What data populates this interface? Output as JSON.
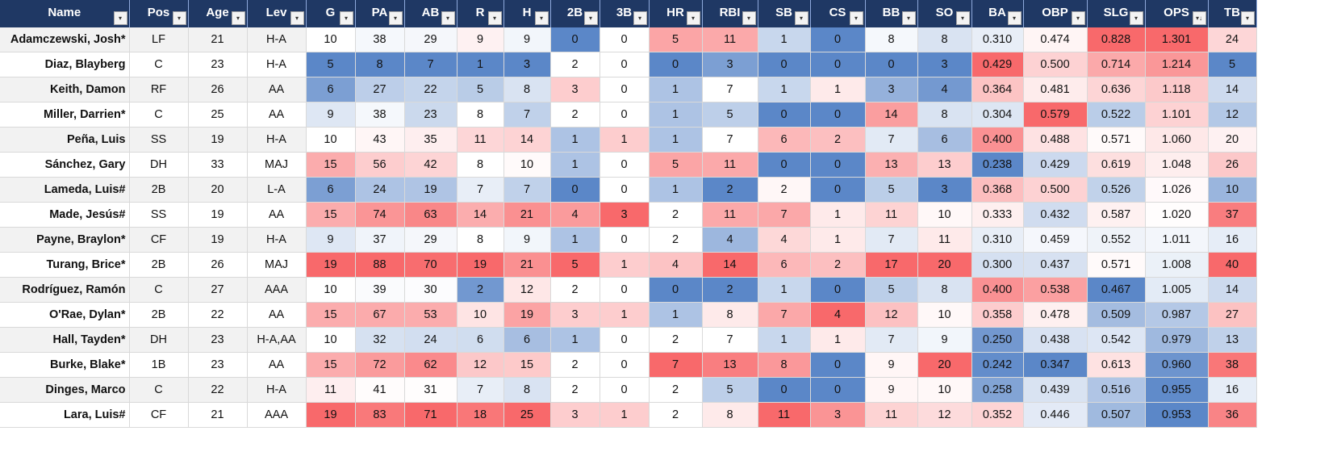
{
  "columns": [
    "Name",
    "Pos",
    "Age",
    "Lev",
    "G",
    "PA",
    "AB",
    "R",
    "H",
    "2B",
    "3B",
    "HR",
    "RBI",
    "SB",
    "CS",
    "BB",
    "SO",
    "BA",
    "OBP",
    "SLG",
    "OPS",
    "TB"
  ],
  "filter_icon": "filter-dropdown-icon",
  "sort_icon": "sort-descending-icon",
  "colors": {
    "header_bg": "#1f3864",
    "low": "#5b87c8",
    "mid": "#ffffff",
    "high": "#f8696b"
  },
  "rows": [
    {
      "name": "Adamczewski, Josh*",
      "pos": "LF",
      "age": "21",
      "lev": "H-A",
      "g": "10",
      "pa": "38",
      "ab": "29",
      "r": "9",
      "h": "9",
      "2b": "0",
      "3b": "0",
      "hr": "5",
      "rbi": "11",
      "sb": "1",
      "cs": "0",
      "bb": "8",
      "so": "8",
      "ba": "0.310",
      "obp": "0.474",
      "slg": "0.828",
      "ops": "1.301",
      "tb": "24"
    },
    {
      "name": "Diaz, Blayberg",
      "pos": "C",
      "age": "23",
      "lev": "H-A",
      "g": "5",
      "pa": "8",
      "ab": "7",
      "r": "1",
      "h": "3",
      "2b": "2",
      "3b": "0",
      "hr": "0",
      "rbi": "3",
      "sb": "0",
      "cs": "0",
      "bb": "0",
      "so": "3",
      "ba": "0.429",
      "obp": "0.500",
      "slg": "0.714",
      "ops": "1.214",
      "tb": "5"
    },
    {
      "name": "Keith, Damon",
      "pos": "RF",
      "age": "26",
      "lev": "AA",
      "g": "6",
      "pa": "27",
      "ab": "22",
      "r": "5",
      "h": "8",
      "2b": "3",
      "3b": "0",
      "hr": "1",
      "rbi": "7",
      "sb": "1",
      "cs": "1",
      "bb": "3",
      "so": "4",
      "ba": "0.364",
      "obp": "0.481",
      "slg": "0.636",
      "ops": "1.118",
      "tb": "14"
    },
    {
      "name": "Miller, Darrien*",
      "pos": "C",
      "age": "25",
      "lev": "AA",
      "g": "9",
      "pa": "38",
      "ab": "23",
      "r": "8",
      "h": "7",
      "2b": "2",
      "3b": "0",
      "hr": "1",
      "rbi": "5",
      "sb": "0",
      "cs": "0",
      "bb": "14",
      "so": "8",
      "ba": "0.304",
      "obp": "0.579",
      "slg": "0.522",
      "ops": "1.101",
      "tb": "12"
    },
    {
      "name": "Peña, Luis",
      "pos": "SS",
      "age": "19",
      "lev": "H-A",
      "g": "10",
      "pa": "43",
      "ab": "35",
      "r": "11",
      "h": "14",
      "2b": "1",
      "3b": "1",
      "hr": "1",
      "rbi": "7",
      "sb": "6",
      "cs": "2",
      "bb": "7",
      "so": "6",
      "ba": "0.400",
      "obp": "0.488",
      "slg": "0.571",
      "ops": "1.060",
      "tb": "20"
    },
    {
      "name": "Sánchez, Gary",
      "pos": "DH",
      "age": "33",
      "lev": "MAJ",
      "g": "15",
      "pa": "56",
      "ab": "42",
      "r": "8",
      "h": "10",
      "2b": "1",
      "3b": "0",
      "hr": "5",
      "rbi": "11",
      "sb": "0",
      "cs": "0",
      "bb": "13",
      "so": "13",
      "ba": "0.238",
      "obp": "0.429",
      "slg": "0.619",
      "ops": "1.048",
      "tb": "26"
    },
    {
      "name": "Lameda, Luis#",
      "pos": "2B",
      "age": "20",
      "lev": "L-A",
      "g": "6",
      "pa": "24",
      "ab": "19",
      "r": "7",
      "h": "7",
      "2b": "0",
      "3b": "0",
      "hr": "1",
      "rbi": "2",
      "sb": "2",
      "cs": "0",
      "bb": "5",
      "so": "3",
      "ba": "0.368",
      "obp": "0.500",
      "slg": "0.526",
      "ops": "1.026",
      "tb": "10"
    },
    {
      "name": "Made, Jesús#",
      "pos": "SS",
      "age": "19",
      "lev": "AA",
      "g": "15",
      "pa": "74",
      "ab": "63",
      "r": "14",
      "h": "21",
      "2b": "4",
      "3b": "3",
      "hr": "2",
      "rbi": "11",
      "sb": "7",
      "cs": "1",
      "bb": "11",
      "so": "10",
      "ba": "0.333",
      "obp": "0.432",
      "slg": "0.587",
      "ops": "1.020",
      "tb": "37"
    },
    {
      "name": "Payne, Braylon*",
      "pos": "CF",
      "age": "19",
      "lev": "H-A",
      "g": "9",
      "pa": "37",
      "ab": "29",
      "r": "8",
      "h": "9",
      "2b": "1",
      "3b": "0",
      "hr": "2",
      "rbi": "4",
      "sb": "4",
      "cs": "1",
      "bb": "7",
      "so": "11",
      "ba": "0.310",
      "obp": "0.459",
      "slg": "0.552",
      "ops": "1.011",
      "tb": "16"
    },
    {
      "name": "Turang, Brice*",
      "pos": "2B",
      "age": "26",
      "lev": "MAJ",
      "g": "19",
      "pa": "88",
      "ab": "70",
      "r": "19",
      "h": "21",
      "2b": "5",
      "3b": "1",
      "hr": "4",
      "rbi": "14",
      "sb": "6",
      "cs": "2",
      "bb": "17",
      "so": "20",
      "ba": "0.300",
      "obp": "0.437",
      "slg": "0.571",
      "ops": "1.008",
      "tb": "40"
    },
    {
      "name": "Rodríguez, Ramón",
      "pos": "C",
      "age": "27",
      "lev": "AAA",
      "g": "10",
      "pa": "39",
      "ab": "30",
      "r": "2",
      "h": "12",
      "2b": "2",
      "3b": "0",
      "hr": "0",
      "rbi": "2",
      "sb": "1",
      "cs": "0",
      "bb": "5",
      "so": "8",
      "ba": "0.400",
      "obp": "0.538",
      "slg": "0.467",
      "ops": "1.005",
      "tb": "14"
    },
    {
      "name": "O'Rae, Dylan*",
      "pos": "2B",
      "age": "22",
      "lev": "AA",
      "g": "15",
      "pa": "67",
      "ab": "53",
      "r": "10",
      "h": "19",
      "2b": "3",
      "3b": "1",
      "hr": "1",
      "rbi": "8",
      "sb": "7",
      "cs": "4",
      "bb": "12",
      "so": "10",
      "ba": "0.358",
      "obp": "0.478",
      "slg": "0.509",
      "ops": "0.987",
      "tb": "27"
    },
    {
      "name": "Hall, Tayden*",
      "pos": "DH",
      "age": "23",
      "lev": "H-A,AA",
      "g": "10",
      "pa": "32",
      "ab": "24",
      "r": "6",
      "h": "6",
      "2b": "1",
      "3b": "0",
      "hr": "2",
      "rbi": "7",
      "sb": "1",
      "cs": "1",
      "bb": "7",
      "so": "9",
      "ba": "0.250",
      "obp": "0.438",
      "slg": "0.542",
      "ops": "0.979",
      "tb": "13"
    },
    {
      "name": "Burke, Blake*",
      "pos": "1B",
      "age": "23",
      "lev": "AA",
      "g": "15",
      "pa": "72",
      "ab": "62",
      "r": "12",
      "h": "15",
      "2b": "2",
      "3b": "0",
      "hr": "7",
      "rbi": "13",
      "sb": "8",
      "cs": "0",
      "bb": "9",
      "so": "20",
      "ba": "0.242",
      "obp": "0.347",
      "slg": "0.613",
      "ops": "0.960",
      "tb": "38"
    },
    {
      "name": "Dinges, Marco",
      "pos": "C",
      "age": "22",
      "lev": "H-A",
      "g": "11",
      "pa": "41",
      "ab": "31",
      "r": "7",
      "h": "8",
      "2b": "2",
      "3b": "0",
      "hr": "2",
      "rbi": "5",
      "sb": "0",
      "cs": "0",
      "bb": "9",
      "so": "10",
      "ba": "0.258",
      "obp": "0.439",
      "slg": "0.516",
      "ops": "0.955",
      "tb": "16"
    },
    {
      "name": "Lara, Luis#",
      "pos": "CF",
      "age": "21",
      "lev": "AAA",
      "g": "19",
      "pa": "83",
      "ab": "71",
      "r": "18",
      "h": "25",
      "2b": "3",
      "3b": "1",
      "hr": "2",
      "rbi": "8",
      "sb": "11",
      "cs": "3",
      "bb": "11",
      "so": "12",
      "ba": "0.352",
      "obp": "0.446",
      "slg": "0.507",
      "ops": "0.953",
      "tb": "36"
    }
  ]
}
